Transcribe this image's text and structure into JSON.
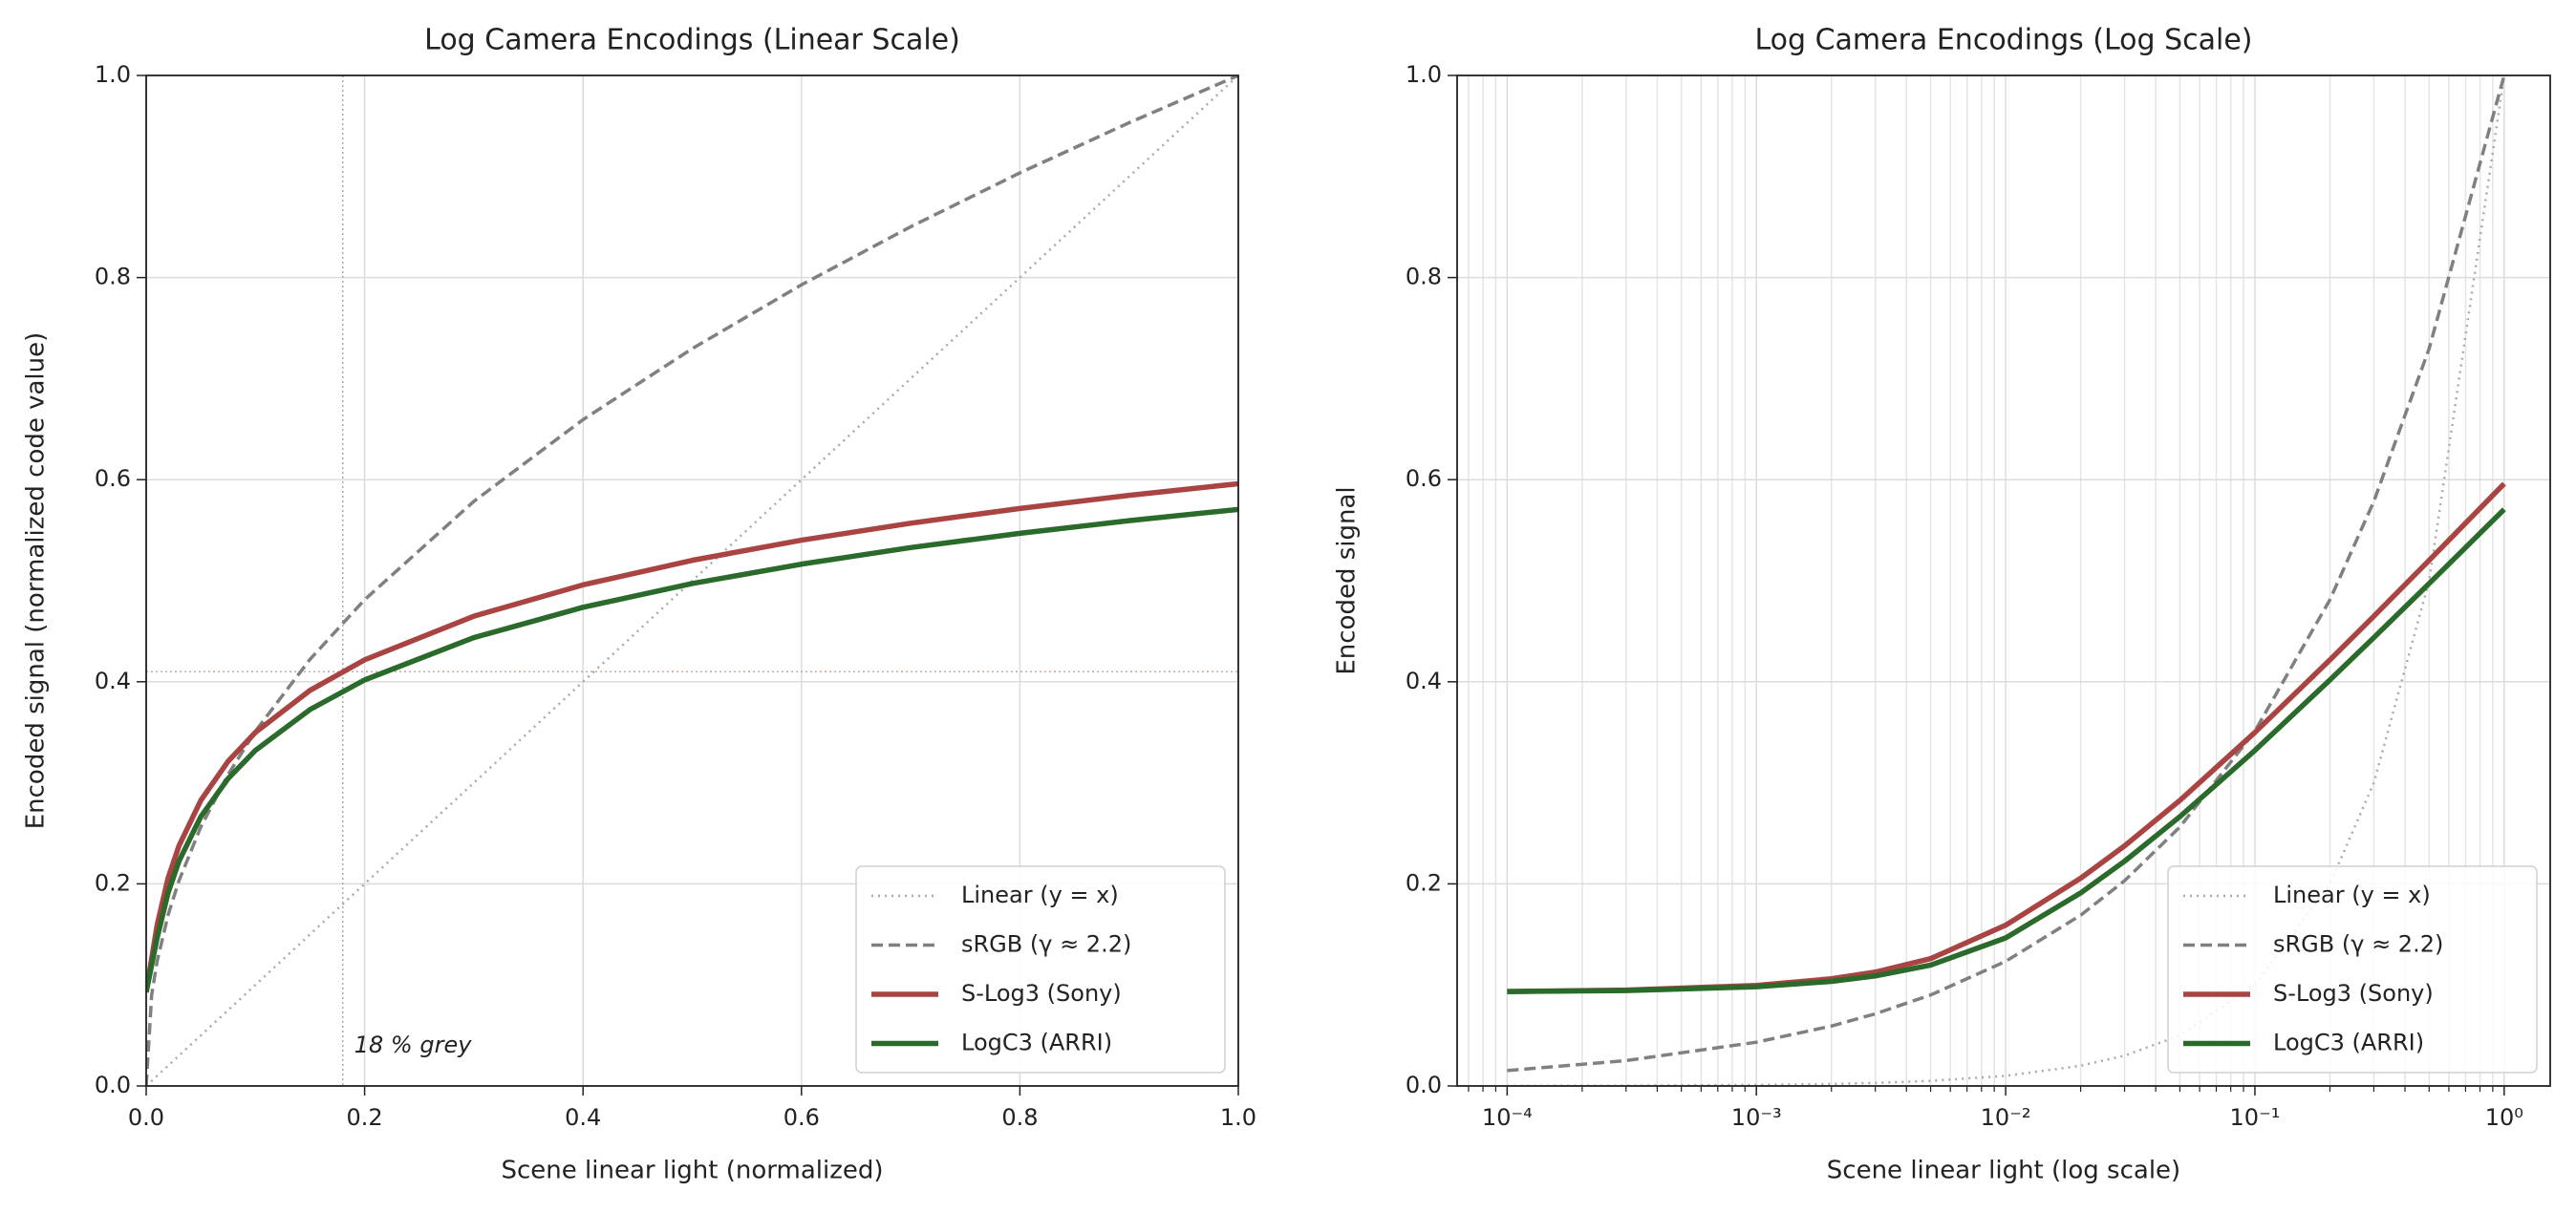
{
  "chart_data": [
    {
      "type": "line",
      "title": "Log Camera Encodings (Linear Scale)",
      "xlabel": "Scene linear light (normalized)",
      "ylabel": "Encoded signal (normalized code value)",
      "xscale": "linear",
      "xlim": [
        0,
        1
      ],
      "ylim": [
        0,
        1
      ],
      "xticks": [
        {
          "value": 0,
          "label": "0.0"
        },
        0.2,
        0.4,
        0.6,
        0.8,
        {
          "value": 1,
          "label": "1.0"
        }
      ],
      "yticks": [
        {
          "value": 0,
          "label": "0.0"
        },
        0.2,
        0.4,
        0.6,
        0.8,
        {
          "value": 1,
          "label": "1.0"
        }
      ],
      "grid": true,
      "legend": "lower right",
      "vlines": [
        0.18
      ],
      "hlines": [
        0.41
      ],
      "annotation": "18 % grey",
      "series": [
        {
          "name": "Linear (y = x)",
          "color": "#aaaaaa",
          "linestyle": "dotted",
          "x": [
            0,
            1
          ],
          "values": [
            0,
            1
          ]
        },
        {
          "name": "sRGB (γ ≈ 2.2)",
          "color": "#808080",
          "linestyle": "dashed",
          "x": [
            0,
            0.005,
            0.01,
            0.02,
            0.03,
            0.05,
            0.075,
            0.1,
            0.15,
            0.2,
            0.3,
            0.4,
            0.5,
            0.6,
            0.7,
            0.8,
            0.9,
            1
          ],
          "values": [
            0,
            0.09,
            0.1233,
            0.169,
            0.2031,
            0.2563,
            0.3082,
            0.3511,
            0.4222,
            0.4812,
            0.5785,
            0.6594,
            0.7297,
            0.7928,
            0.8503,
            0.9036,
            0.9532,
            1
          ]
        },
        {
          "name": "S-Log3 (Sony)",
          "color": "#a94442",
          "linestyle": "solid",
          "x": [
            0,
            0.005,
            0.01,
            0.02,
            0.03,
            0.05,
            0.075,
            0.1,
            0.15,
            0.2,
            0.3,
            0.4,
            0.5,
            0.6,
            0.7,
            0.8,
            0.9,
            1
          ],
          "values": [
            0.0929,
            0.126,
            0.1591,
            0.2056,
            0.2376,
            0.2826,
            0.3213,
            0.3499,
            0.3915,
            0.4217,
            0.4649,
            0.4959,
            0.5202,
            0.5401,
            0.5569,
            0.5715,
            0.5845,
            0.596
          ]
        },
        {
          "name": "LogC3 (ARRI)",
          "color": "#2a6a2a",
          "linestyle": "solid",
          "x": [
            0,
            0.005,
            0.01,
            0.02,
            0.03,
            0.05,
            0.075,
            0.1,
            0.15,
            0.2,
            0.3,
            0.4,
            0.5,
            0.6,
            0.7,
            0.8,
            0.9,
            1
          ],
          "values": [
            0.0928,
            0.1196,
            0.1465,
            0.191,
            0.2224,
            0.2665,
            0.3042,
            0.3321,
            0.3725,
            0.4018,
            0.4437,
            0.4737,
            0.4972,
            0.5164,
            0.5328,
            0.5469,
            0.5594,
            0.5706
          ]
        }
      ]
    },
    {
      "type": "line",
      "title": "Log Camera Encodings (Log Scale)",
      "xlabel": "Scene linear light (log scale)",
      "ylabel": "Encoded signal",
      "xscale": "log",
      "xlim": [
        6.3e-05,
        1.53
      ],
      "ylim": [
        0,
        1
      ],
      "xticks": [
        {
          "value": 0.0001,
          "label": "10⁻⁴"
        },
        {
          "value": 0.001,
          "label": "10⁻³"
        },
        {
          "value": 0.01,
          "label": "10⁻²"
        },
        {
          "value": 0.1,
          "label": "10⁻¹"
        },
        {
          "value": 1,
          "label": "10⁰"
        }
      ],
      "xminorticks": [
        7e-05,
        8e-05,
        9e-05,
        0.0002,
        0.0003,
        0.0004,
        0.0005,
        0.0006,
        0.0007,
        0.0008,
        0.0009,
        0.002,
        0.003,
        0.004,
        0.005,
        0.006,
        0.007,
        0.008,
        0.009,
        0.02,
        0.03,
        0.04,
        0.05,
        0.06,
        0.07,
        0.08,
        0.09,
        0.2,
        0.3,
        0.4,
        0.5,
        0.6,
        0.7,
        0.8,
        0.9
      ],
      "yticks": [
        {
          "value": 0,
          "label": "0.0"
        },
        0.2,
        0.4,
        0.6,
        0.8,
        {
          "value": 1,
          "label": "1.0"
        }
      ],
      "grid": true,
      "legend": "lower right",
      "series": [
        {
          "name": "Linear (y = x)",
          "color": "#aaaaaa",
          "linestyle": "dotted",
          "x": [
            0.0001,
            0.0003,
            0.001,
            0.002,
            0.003,
            0.005,
            0.01,
            0.02,
            0.03,
            0.05,
            0.1,
            0.2,
            0.3,
            0.5,
            1
          ],
          "values": [
            0.0001,
            0.0003,
            0.001,
            0.002,
            0.003,
            0.005,
            0.01,
            0.02,
            0.03,
            0.05,
            0.1,
            0.2,
            0.3,
            0.5,
            1
          ]
        },
        {
          "name": "sRGB (γ ≈ 2.2)",
          "color": "#808080",
          "linestyle": "dashed",
          "x": [
            0.0001,
            0.0003,
            0.001,
            0.002,
            0.003,
            0.005,
            0.01,
            0.02,
            0.03,
            0.05,
            0.1,
            0.2,
            0.3,
            0.5,
            1
          ],
          "values": [
            0.0152,
            0.0251,
            0.0433,
            0.0593,
            0.0714,
            0.09,
            0.1233,
            0.169,
            0.2031,
            0.2563,
            0.3511,
            0.4812,
            0.5785,
            0.7297,
            1
          ]
        },
        {
          "name": "S-Log3 (Sony)",
          "color": "#a94442",
          "linestyle": "solid",
          "x": [
            0.0001,
            0.0003,
            0.001,
            0.002,
            0.003,
            0.005,
            0.01,
            0.02,
            0.03,
            0.05,
            0.1,
            0.2,
            0.3,
            0.5,
            1
          ],
          "values": [
            0.0935,
            0.0949,
            0.0995,
            0.1061,
            0.1127,
            0.126,
            0.1591,
            0.2056,
            0.2376,
            0.2826,
            0.3499,
            0.4217,
            0.4649,
            0.5202,
            0.596
          ]
        },
        {
          "name": "LogC3 (ARRI)",
          "color": "#2a6a2a",
          "linestyle": "solid",
          "x": [
            0.0001,
            0.0003,
            0.001,
            0.002,
            0.003,
            0.005,
            0.01,
            0.02,
            0.03,
            0.05,
            0.1,
            0.2,
            0.3,
            0.5,
            1
          ],
          "values": [
            0.0934,
            0.0944,
            0.0982,
            0.1035,
            0.1089,
            0.1196,
            0.1465,
            0.191,
            0.2224,
            0.2665,
            0.3321,
            0.4018,
            0.4437,
            0.4972,
            0.5706
          ]
        }
      ]
    }
  ]
}
